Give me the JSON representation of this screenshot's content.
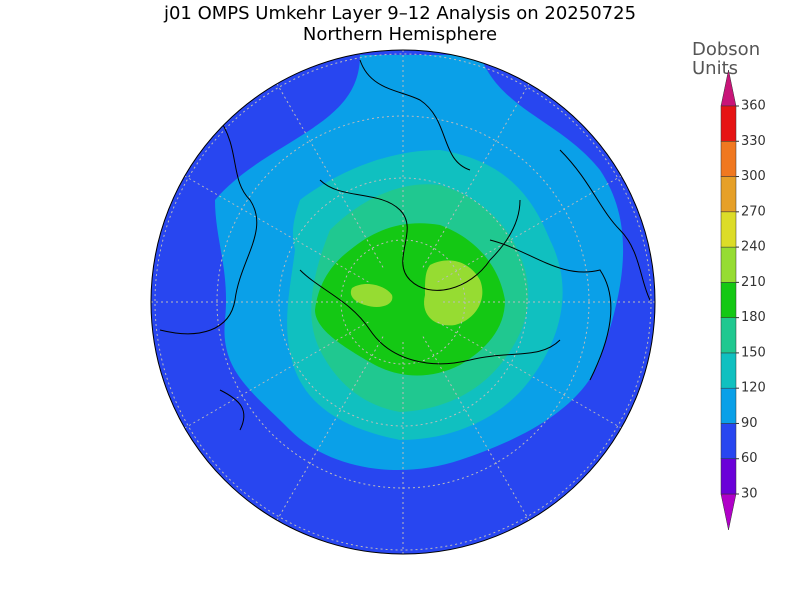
{
  "title": "j01 OMPS Umkehr Layer 9–12 Analysis on 20250725",
  "subtitle": "Northern Hemisphere",
  "colorbar": {
    "label": [
      "Dobson",
      "Units"
    ],
    "ticks": [
      30,
      60,
      90,
      120,
      150,
      180,
      210,
      240,
      270,
      300,
      330,
      360
    ],
    "colors": [
      "#b000c8",
      "#6a00d8",
      "#2846f0",
      "#0aa0e8",
      "#10c0c0",
      "#20c890",
      "#14c814",
      "#96dc32",
      "#dcdc28",
      "#e6a028",
      "#f07820",
      "#e61414",
      "#c81478"
    ]
  }
}
